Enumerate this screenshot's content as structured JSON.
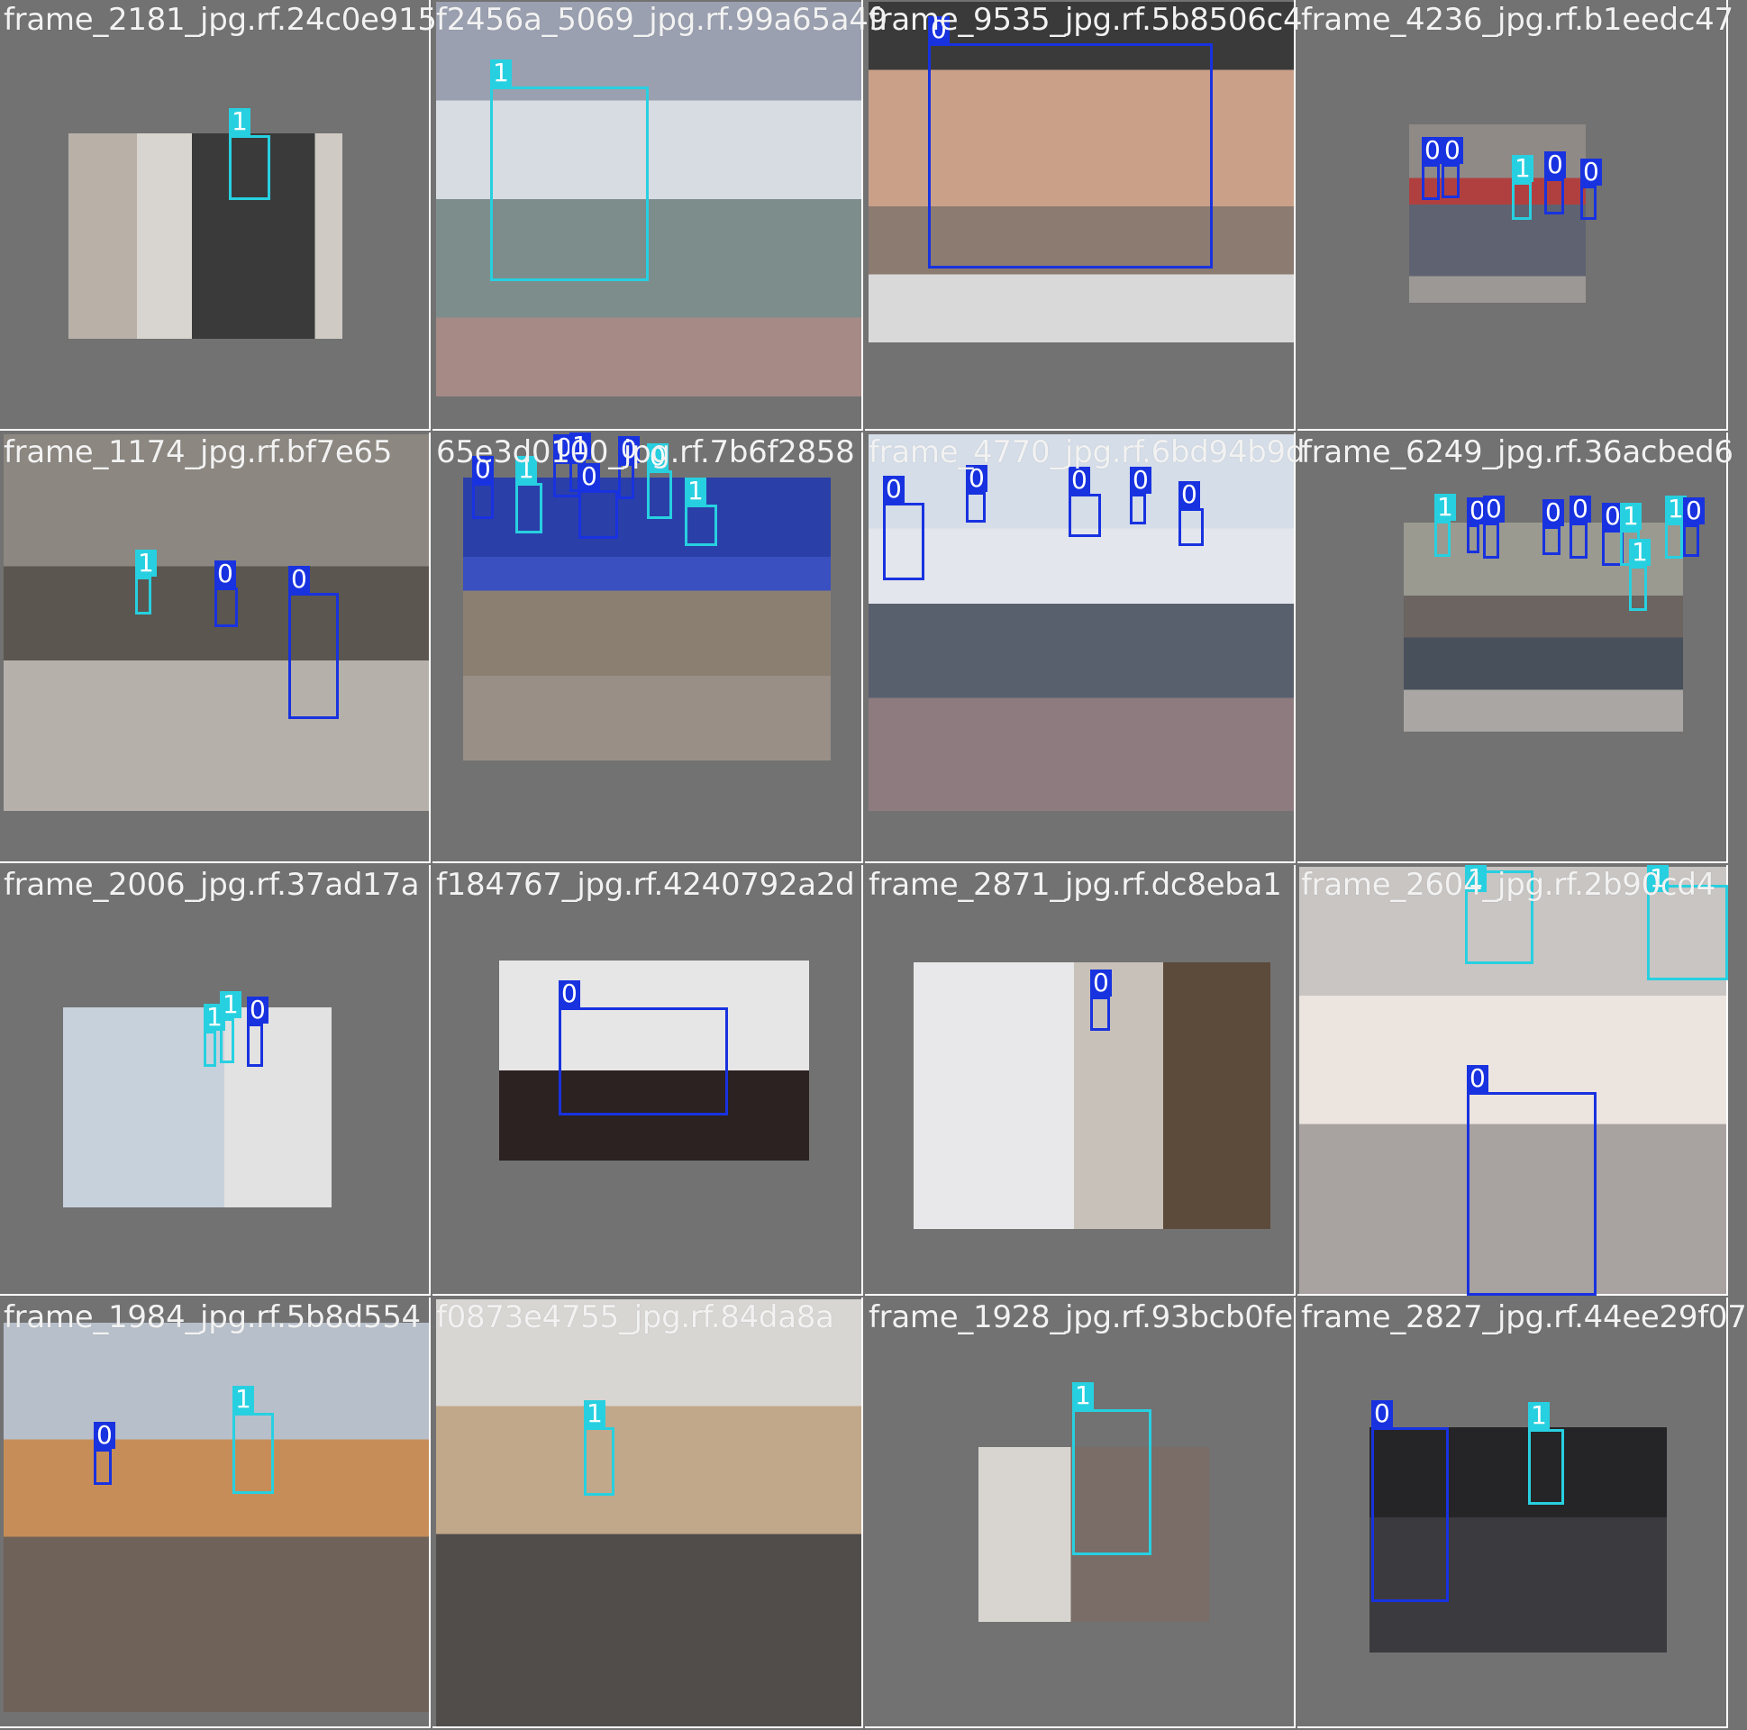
{
  "mosaic": {
    "class_colors": {
      "0": "#1832e0",
      "1": "#27d0e0"
    },
    "tiles": [
      {
        "filename": "frame_2181_jpg.rf.24c0e915",
        "labels": [
          "1"
        ]
      },
      {
        "filename": "f2456a_5069_jpg.rf.99a65a49",
        "labels": [
          "1"
        ]
      },
      {
        "filename": "frame_9535_jpg.rf.5b8506c4",
        "labels": [
          "0"
        ]
      },
      {
        "filename": "frame_4236_jpg.rf.b1eedc47",
        "labels": [
          "0",
          "0",
          "1",
          "0",
          "0"
        ]
      },
      {
        "filename": "frame_1174_jpg.rf.bf7e65",
        "labels": [
          "1",
          "0",
          "0"
        ]
      },
      {
        "filename": "65e3d0100_jpg.rf.7b6f2858",
        "labels": [
          "0",
          "1",
          "0",
          "0",
          "0",
          "0",
          "1",
          "1"
        ]
      },
      {
        "filename": "frame_4770_jpg.rf.6bd94b9d",
        "labels": [
          "0",
          "0",
          "0",
          "0",
          "0"
        ]
      },
      {
        "filename": "frame_6249_jpg.rf.36acbed6",
        "labels": [
          "1",
          "0",
          "0",
          "0",
          "0",
          "0",
          "1",
          "1",
          "0",
          "1"
        ]
      },
      {
        "filename": "frame_2006_jpg.rf.37ad17a",
        "labels": [
          "1",
          "1",
          "0"
        ]
      },
      {
        "filename": "f184767_jpg.rf.4240792a2d",
        "labels": [
          "0"
        ]
      },
      {
        "filename": "frame_2871_jpg.rf.dc8eba1",
        "labels": [
          "0"
        ]
      },
      {
        "filename": "frame_2604_jpg.rf.2b90cd4",
        "labels": [
          "1",
          "1",
          "0"
        ]
      },
      {
        "filename": "frame_1984_jpg.rf.5b8d554",
        "labels": [
          "0",
          "1"
        ]
      },
      {
        "filename": "f0873e4755_jpg.rf.84da8a",
        "labels": [
          "1"
        ]
      },
      {
        "filename": "frame_1928_jpg.rf.93bcb0fe",
        "labels": [
          "1"
        ]
      },
      {
        "filename": "frame_2827_jpg.rf.44ee29f07",
        "labels": [
          "0",
          "1"
        ]
      }
    ]
  }
}
